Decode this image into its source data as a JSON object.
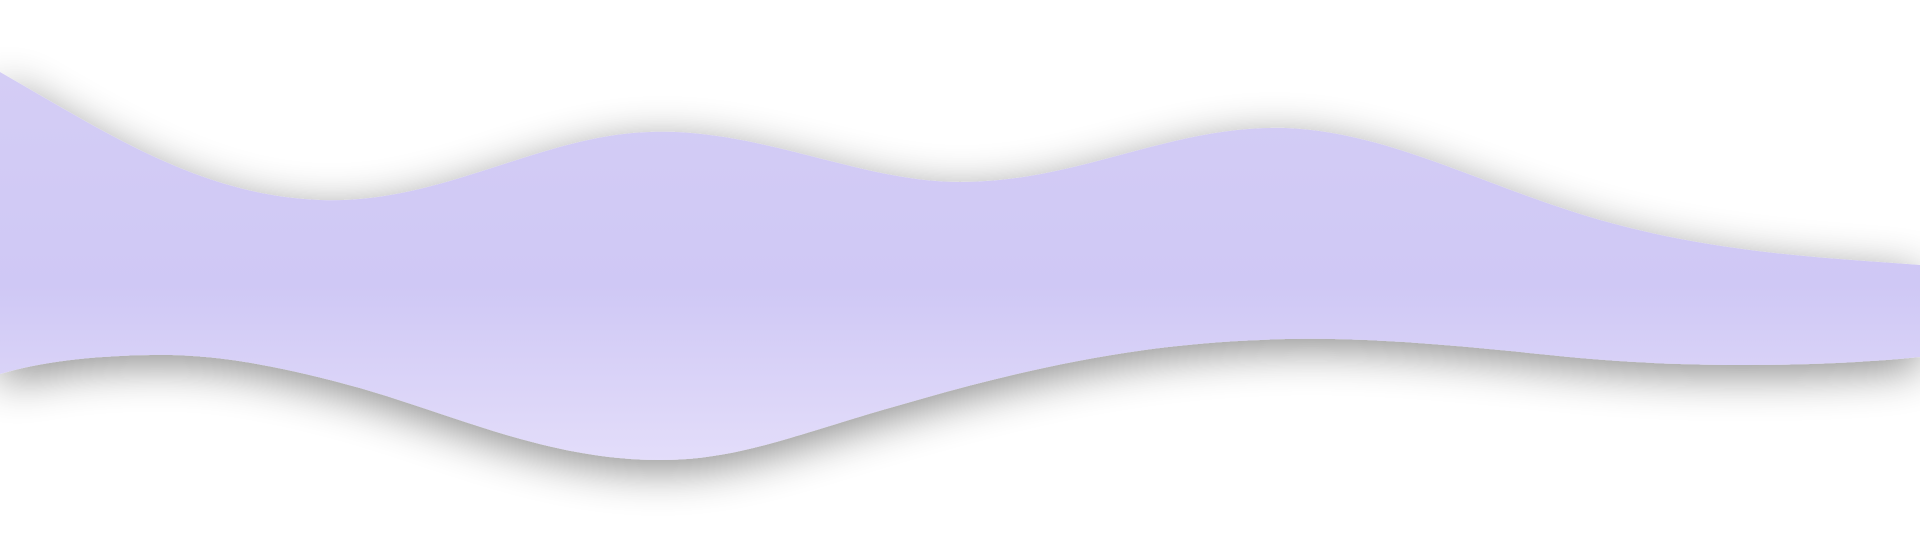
{
  "colors": {
    "background": "#ffffff",
    "wave_fill": "#cfc8f5",
    "wave_fill_light": "#e3ddfa",
    "shadow": "#000000"
  }
}
